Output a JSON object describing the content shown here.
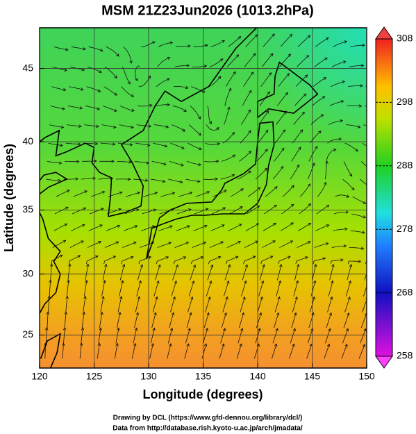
{
  "chart_data": {
    "type": "map",
    "title": "MSM 21Z23Jun2026 (1013.2hPa)",
    "xlabel": "Longitude (degrees)",
    "ylabel": "Latitude  (degrees)",
    "xlim": [
      120,
      150
    ],
    "ylim": [
      22.2,
      47.6
    ],
    "projection": "mercator",
    "xticks": [
      120,
      125,
      130,
      135,
      140,
      145,
      150
    ],
    "yticks": [
      25,
      30,
      35,
      40,
      45
    ],
    "grid": true,
    "colorbar": {
      "lim": [
        258,
        308
      ],
      "ticks": [
        258,
        268,
        278,
        288,
        298,
        308
      ]
    }
  },
  "credits": [
    "Drawing by DCL (https://www.gfd-dennou.org/library/dcl/)",
    "Data from http://database.rish.kyoto-u.ac.jp/arch/jmadata/"
  ]
}
